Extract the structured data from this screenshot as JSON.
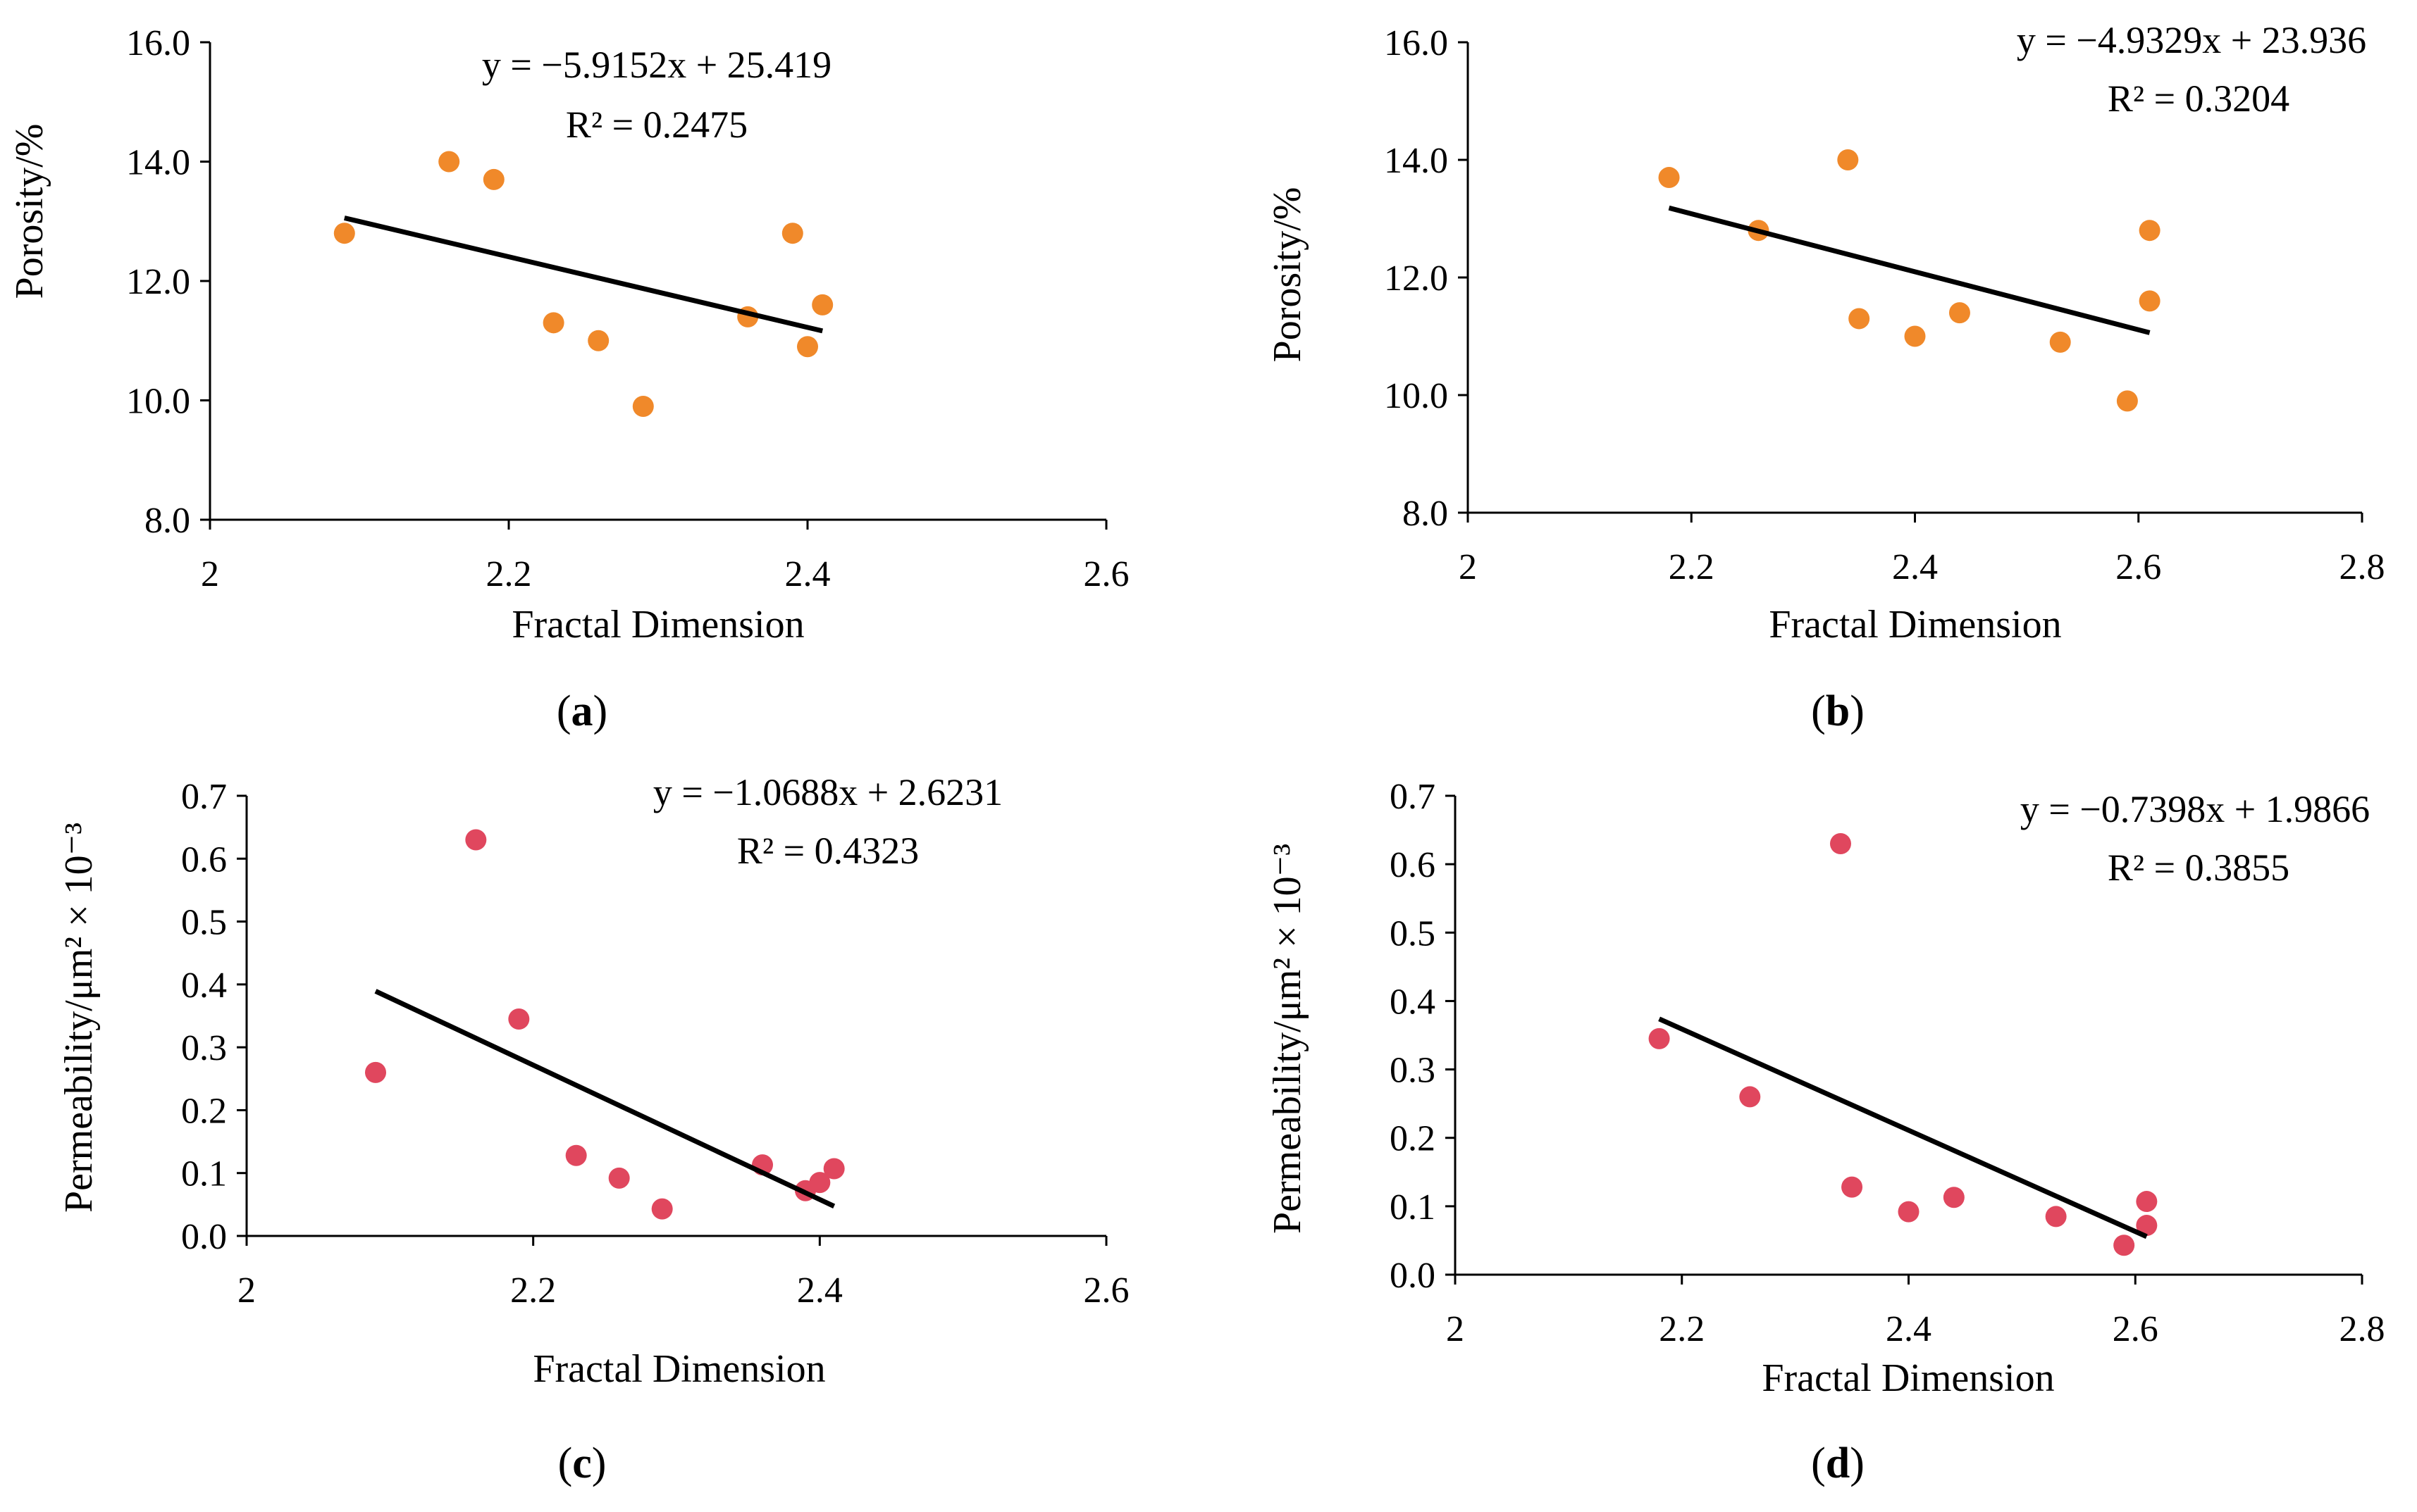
{
  "figure": {
    "panel_labels": [
      {
        "open": "(",
        "letter": "a",
        "close": ")"
      },
      {
        "open": "(",
        "letter": "b",
        "close": ")"
      },
      {
        "open": "(",
        "letter": "c",
        "close": ")"
      },
      {
        "open": "(",
        "letter": "d",
        "close": ")"
      }
    ]
  },
  "chart_data": [
    {
      "type": "scatter",
      "xlabel": "Fractal Dimension",
      "ylabel": "Porosity/%",
      "xlim": [
        2,
        2.6
      ],
      "ylim": [
        8.0,
        16.0
      ],
      "xticks": [
        2,
        2.2,
        2.4,
        2.6
      ],
      "xtick_labels": [
        "2",
        "2.2",
        "2.4",
        "2.6"
      ],
      "yticks": [
        8,
        10,
        12,
        14,
        16
      ],
      "ytick_labels": [
        "8.0",
        "10.0",
        "12.0",
        "14.0",
        "16.0"
      ],
      "grid": false,
      "marker_color": "#f0892a",
      "x": [
        2.09,
        2.16,
        2.19,
        2.23,
        2.26,
        2.29,
        2.36,
        2.39,
        2.4,
        2.41
      ],
      "y": [
        12.8,
        14.0,
        13.7,
        11.3,
        11.0,
        9.9,
        11.4,
        12.8,
        10.9,
        11.6
      ],
      "trendline": {
        "slope": -5.9152,
        "intercept": 25.419,
        "x_range": [
          2.09,
          2.41
        ]
      },
      "equation": "y = −5.9152x + 25.419",
      "r2": "R² = 0.2475"
    },
    {
      "type": "scatter",
      "xlabel": "Fractal Dimension",
      "ylabel": "Porosity/%",
      "xlim": [
        2,
        2.8
      ],
      "ylim": [
        8.0,
        16.0
      ],
      "xticks": [
        2,
        2.2,
        2.4,
        2.6,
        2.8
      ],
      "xtick_labels": [
        "2",
        "2.2",
        "2.4",
        "2.6",
        "2.8"
      ],
      "yticks": [
        8,
        10,
        12,
        14,
        16
      ],
      "ytick_labels": [
        "8.0",
        "10.0",
        "12.0",
        "14.0",
        "16.0"
      ],
      "grid": false,
      "marker_color": "#f0892a",
      "x": [
        2.18,
        2.26,
        2.34,
        2.35,
        2.4,
        2.44,
        2.53,
        2.59,
        2.61,
        2.61
      ],
      "y": [
        13.7,
        12.8,
        14.0,
        11.3,
        11.0,
        11.4,
        10.9,
        9.9,
        12.8,
        11.6
      ],
      "trendline": {
        "slope": -4.9329,
        "intercept": 23.936,
        "x_range": [
          2.18,
          2.61
        ]
      },
      "equation": "y = −4.9329x + 23.936",
      "r2": "R² = 0.3204"
    },
    {
      "type": "scatter",
      "xlabel": "Fractal Dimension",
      "ylabel": "Permeability/μm² × 10⁻³",
      "xlim": [
        2,
        2.6
      ],
      "ylim": [
        0.0,
        0.7
      ],
      "xticks": [
        2,
        2.2,
        2.4,
        2.6
      ],
      "xtick_labels": [
        "2",
        "2.2",
        "2.4",
        "2.6"
      ],
      "yticks": [
        0,
        0.1,
        0.2,
        0.3,
        0.4,
        0.5,
        0.6,
        0.7
      ],
      "ytick_labels": [
        "0.0",
        "0.1",
        "0.2",
        "0.3",
        "0.4",
        "0.5",
        "0.6",
        "0.7"
      ],
      "grid": false,
      "marker_color": "#e0475e",
      "x": [
        2.09,
        2.16,
        2.19,
        2.23,
        2.26,
        2.29,
        2.36,
        2.39,
        2.4,
        2.41
      ],
      "y": [
        0.26,
        0.63,
        0.345,
        0.128,
        0.092,
        0.043,
        0.113,
        0.072,
        0.085,
        0.107
      ],
      "trendline": {
        "slope": -1.0688,
        "intercept": 2.6231,
        "x_range": [
          2.09,
          2.41
        ]
      },
      "equation": "y = −1.0688x + 2.6231",
      "r2": "R² = 0.4323"
    },
    {
      "type": "scatter",
      "xlabel": "Fractal Dimension",
      "ylabel": "Permeability/μm² × 10⁻³",
      "xlim": [
        2,
        2.8
      ],
      "ylim": [
        0.0,
        0.7
      ],
      "xticks": [
        2,
        2.2,
        2.4,
        2.6,
        2.8
      ],
      "xtick_labels": [
        "2",
        "2.2",
        "2.4",
        "2.6",
        "2.8"
      ],
      "yticks": [
        0,
        0.1,
        0.2,
        0.3,
        0.4,
        0.5,
        0.6,
        0.7
      ],
      "ytick_labels": [
        "0.0",
        "0.1",
        "0.2",
        "0.3",
        "0.4",
        "0.5",
        "0.6",
        "0.7"
      ],
      "grid": false,
      "marker_color": "#e0475e",
      "x": [
        2.18,
        2.26,
        2.34,
        2.35,
        2.4,
        2.44,
        2.53,
        2.59,
        2.61,
        2.61
      ],
      "y": [
        0.345,
        0.26,
        0.63,
        0.128,
        0.092,
        0.113,
        0.085,
        0.043,
        0.107,
        0.072
      ],
      "trendline": {
        "slope": -0.7398,
        "intercept": 1.9866,
        "x_range": [
          2.18,
          2.61
        ]
      },
      "equation": "y = −0.7398x + 1.9866",
      "r2": "R² = 0.3855"
    }
  ]
}
